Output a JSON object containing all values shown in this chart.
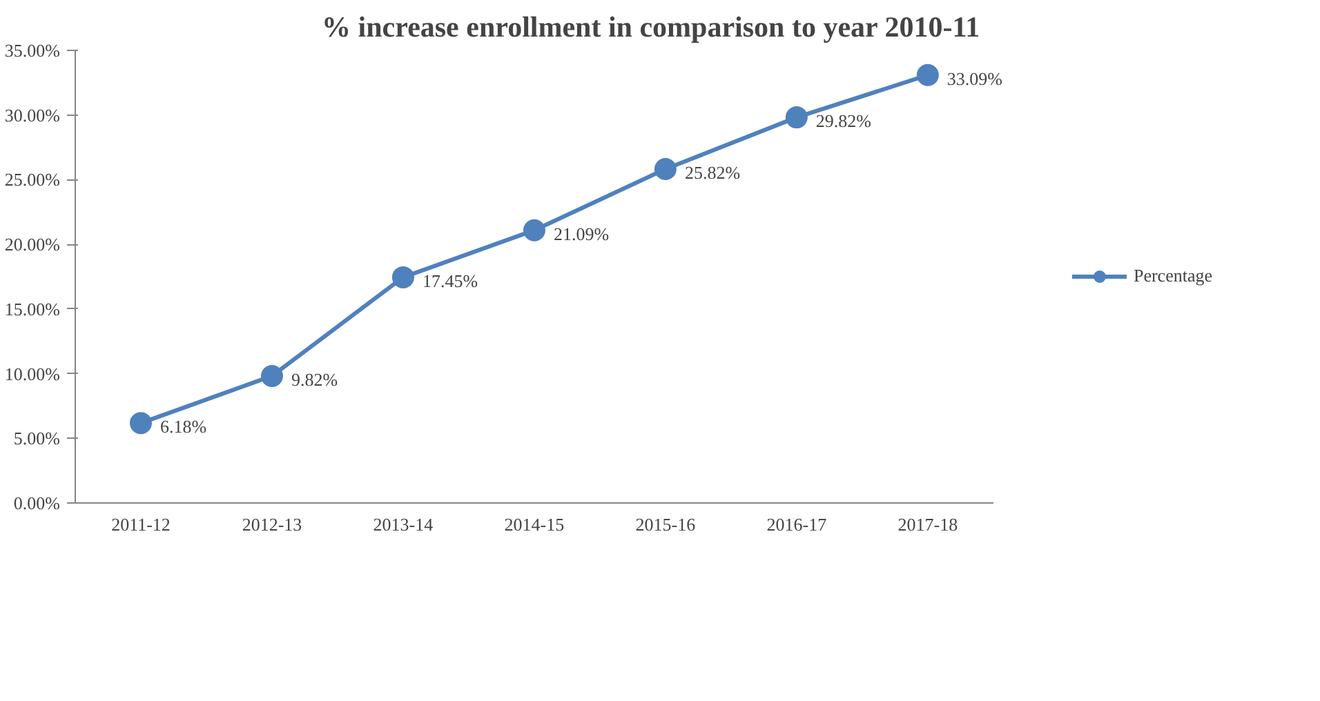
{
  "chart_data": {
    "type": "line",
    "title": "% increase enrollment in comparison to year 2010-11",
    "categories": [
      "2011-12",
      "2012-13",
      "2013-14",
      "2014-15",
      "2015-16",
      "2016-17",
      "2017-18"
    ],
    "series": [
      {
        "name": "Percentage",
        "color": "#4f81bd",
        "values": [
          6.18,
          9.82,
          17.45,
          21.09,
          25.82,
          29.82,
          33.09
        ],
        "value_labels": [
          "6.18%",
          "9.82%",
          "17.45%",
          "21.09%",
          "25.82%",
          "29.82%",
          "33.09%"
        ]
      }
    ],
    "ylim": [
      0,
      35
    ],
    "yticks": [
      {
        "value": 0,
        "label": "0.00%"
      },
      {
        "value": 5,
        "label": "5.00%"
      },
      {
        "value": 10,
        "label": "10.00%"
      },
      {
        "value": 15,
        "label": "15.00%"
      },
      {
        "value": 20,
        "label": "20.00%"
      },
      {
        "value": 25,
        "label": "25.00%"
      },
      {
        "value": 30,
        "label": "30.00%"
      },
      {
        "value": 35,
        "label": "35.00%"
      }
    ],
    "marker": "circle",
    "line_style": "solid",
    "grid": false,
    "legend": "right"
  }
}
